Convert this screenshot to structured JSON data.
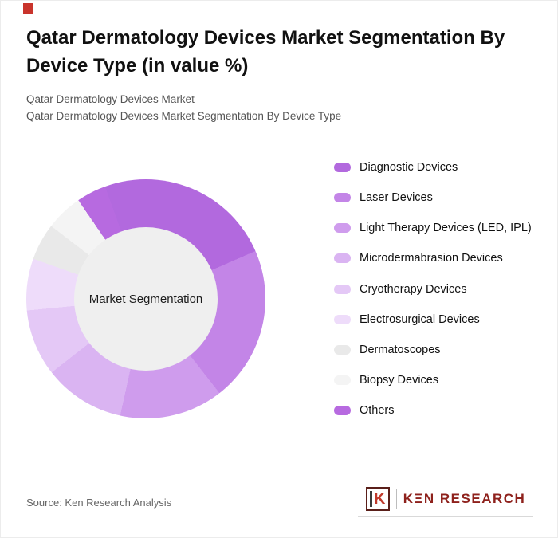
{
  "accent": {
    "corner_color": "#c9342c"
  },
  "header": {
    "title": "Qatar Dermatology Devices Market Segmentation By Device Type (in value %)",
    "subtitle1": "Qatar Dermatology Devices Market",
    "subtitle2": "Qatar Dermatology Devices Market Segmentation By Device Type"
  },
  "chart_data": {
    "type": "pie",
    "donut": true,
    "center_label": "Market Segmentation",
    "start_angle_deg": -20,
    "legend_position": "right",
    "hole_color": "#efefef",
    "segments": [
      {
        "label": "Diagnostic Devices",
        "value": 24,
        "color": "#b269de"
      },
      {
        "label": "Laser Devices",
        "value": 21,
        "color": "#c385e7"
      },
      {
        "label": "Light Therapy Devices (LED, IPL)",
        "value": 14,
        "color": "#cf9ced"
      },
      {
        "label": "Microdermabrasion Devices",
        "value": 11,
        "color": "#dab4f2"
      },
      {
        "label": "Cryotherapy Devices",
        "value": 9,
        "color": "#e4c8f6"
      },
      {
        "label": "Electrosurgical Devices",
        "value": 7,
        "color": "#eedcfa"
      },
      {
        "label": "Dermatoscopes",
        "value": 5,
        "color": "#e9e9e9"
      },
      {
        "label": "Biopsy Devices",
        "value": 5,
        "color": "#f4f4f4"
      },
      {
        "label": "Others",
        "value": 4,
        "color": "#b76ae0"
      }
    ]
  },
  "footer": {
    "source": "Source: Ken Research Analysis",
    "logo": {
      "icon_letter": "K",
      "wordmark": "KΞN RESEARCH"
    }
  }
}
